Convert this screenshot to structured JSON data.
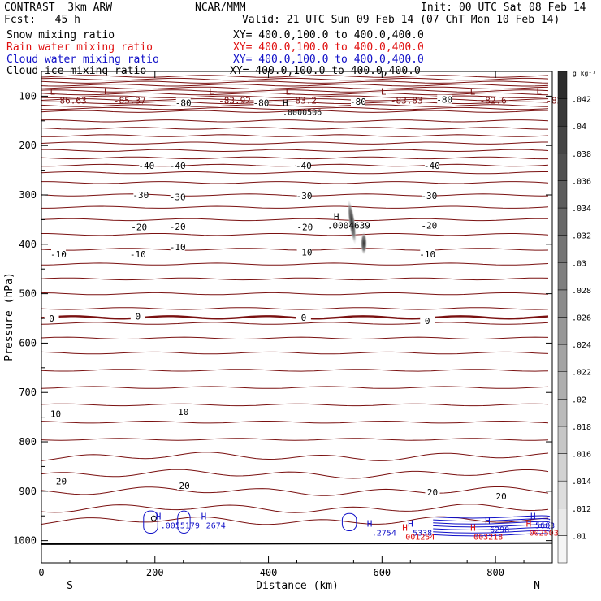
{
  "header": {
    "title": "CONTRAST  3km ARW",
    "center": "NCAR/MMM",
    "init": "Init: 00 UTC Sat 08 Feb 14",
    "fcst": "Fcst:   45 h",
    "valid": "Valid: 21 UTC Sun 09 Feb 14 (07 ChT Mon 10 Feb 14)"
  },
  "fields": [
    {
      "name": "Snow mixing ratio",
      "xy": "XY= 400.0,100.0 to 400.0,400.0",
      "color": "#000000"
    },
    {
      "name": "Rain water mixing ratio",
      "xy": "XY= 400.0,100.0 to 400.0,400.0",
      "color": "#e01010"
    },
    {
      "name": "Cloud water mixing ratio",
      "xy": "XY= 400.0,100.0 to 400.0,400.0",
      "color": "#1010c8"
    },
    {
      "name": "Cloud ice mixing ratio",
      "xy": "XY= 400.0,100.0 to 400.0,400.0",
      "color": "#000000"
    }
  ],
  "chart_data": {
    "type": "contour",
    "xlabel": "Distance (km)",
    "ylabel": "Pressure (hPa)",
    "xlim": [
      0,
      900
    ],
    "ylim": [
      1045,
      50
    ],
    "x_ticks": [
      0,
      200,
      400,
      600,
      800
    ],
    "x_tick_labels": [
      "0",
      "200",
      "400",
      "600",
      "800"
    ],
    "y_ticks": [
      100,
      200,
      300,
      400,
      500,
      600,
      700,
      800,
      900,
      1000
    ],
    "y_tick_labels": [
      "100",
      "200",
      "300",
      "400",
      "500",
      "600",
      "700",
      "800",
      "900",
      "1000"
    ],
    "endpoint_labels": {
      "left": "S",
      "right": "N"
    },
    "temperature_contour_color": "#7a1010",
    "temperature_labels": [
      {
        "x": 18,
        "p": 550,
        "text": "0"
      },
      {
        "x": 170,
        "p": 546,
        "text": "0"
      },
      {
        "x": 462,
        "p": 548,
        "text": "0"
      },
      {
        "x": 680,
        "p": 555,
        "text": "0"
      },
      {
        "x": 30,
        "p": 420,
        "text": "-10"
      },
      {
        "x": 170,
        "p": 420,
        "text": "-10"
      },
      {
        "x": 240,
        "p": 405,
        "text": "-10"
      },
      {
        "x": 463,
        "p": 416,
        "text": "-10"
      },
      {
        "x": 680,
        "p": 420,
        "text": "-10"
      },
      {
        "x": 172,
        "p": 365,
        "text": "-20"
      },
      {
        "x": 240,
        "p": 364,
        "text": "-20"
      },
      {
        "x": 464,
        "p": 365,
        "text": "-20"
      },
      {
        "x": 683,
        "p": 362,
        "text": "-20"
      },
      {
        "x": 175,
        "p": 300,
        "text": "-30"
      },
      {
        "x": 240,
        "p": 304,
        "text": "-30"
      },
      {
        "x": 463,
        "p": 302,
        "text": "-30"
      },
      {
        "x": 683,
        "p": 302,
        "text": "-30"
      },
      {
        "x": 185,
        "p": 241,
        "text": "-40"
      },
      {
        "x": 240,
        "p": 241,
        "text": "-40"
      },
      {
        "x": 462,
        "p": 241,
        "text": "-40"
      },
      {
        "x": 688,
        "p": 241,
        "text": "-40"
      },
      {
        "x": 250,
        "p": 113,
        "text": "-80"
      },
      {
        "x": 387,
        "p": 113,
        "text": "-80"
      },
      {
        "x": 558,
        "p": 111,
        "text": "-80"
      },
      {
        "x": 710,
        "p": 107,
        "text": "-80"
      },
      {
        "x": 25,
        "p": 743,
        "text": "10"
      },
      {
        "x": 250,
        "p": 739,
        "text": "10"
      },
      {
        "x": 35,
        "p": 880,
        "text": "20"
      },
      {
        "x": 252,
        "p": 889,
        "text": "20"
      },
      {
        "x": 689,
        "p": 902,
        "text": "20"
      },
      {
        "x": 810,
        "p": 910,
        "text": "20"
      }
    ],
    "lows": [
      {
        "x": 15,
        "p": 84,
        "value": "86.63"
      },
      {
        "x": 110,
        "p": 84,
        "value": "-85.37"
      },
      {
        "x": 295,
        "p": 84,
        "value": "-83.92"
      },
      {
        "x": 430,
        "p": 84,
        "value": "83.2"
      },
      {
        "x": 598,
        "p": 84,
        "value": "-83.83"
      },
      {
        "x": 755,
        "p": 84,
        "value": "-82.6"
      },
      {
        "x": 872,
        "p": 84,
        "value": "-82"
      }
    ],
    "cloud_ice_maximum": {
      "x": 425,
      "p": 120,
      "value": ".0000506"
    },
    "snow_maximum": {
      "x": 515,
      "p": 360,
      "value": ".0004639"
    },
    "cloud_water_maxima": [
      {
        "x": 210,
        "p": 967,
        "value": ".0055179"
      },
      {
        "x": 290,
        "p": 967,
        "value": "2674"
      },
      {
        "x": 582,
        "p": 982,
        "value": ".2754"
      },
      {
        "x": 654,
        "p": 982,
        "value": "5338"
      },
      {
        "x": 790,
        "p": 975,
        "value": "6298"
      },
      {
        "x": 870,
        "p": 967,
        "value": "5603"
      }
    ],
    "rain_maxima": [
      {
        "x": 650,
        "p": 990,
        "value": "001254"
      },
      {
        "x": 770,
        "p": 990,
        "value": "003218"
      },
      {
        "x": 868,
        "p": 982,
        "value": "002503"
      }
    ],
    "colorbar": {
      "unit": "g kg⁻¹",
      "levels": [
        ".01",
        ".012",
        ".014",
        ".016",
        ".018",
        ".02",
        ".022",
        ".024",
        ".026",
        ".028",
        ".03",
        ".032",
        ".034",
        ".036",
        ".038",
        ".04",
        ".042"
      ]
    }
  }
}
